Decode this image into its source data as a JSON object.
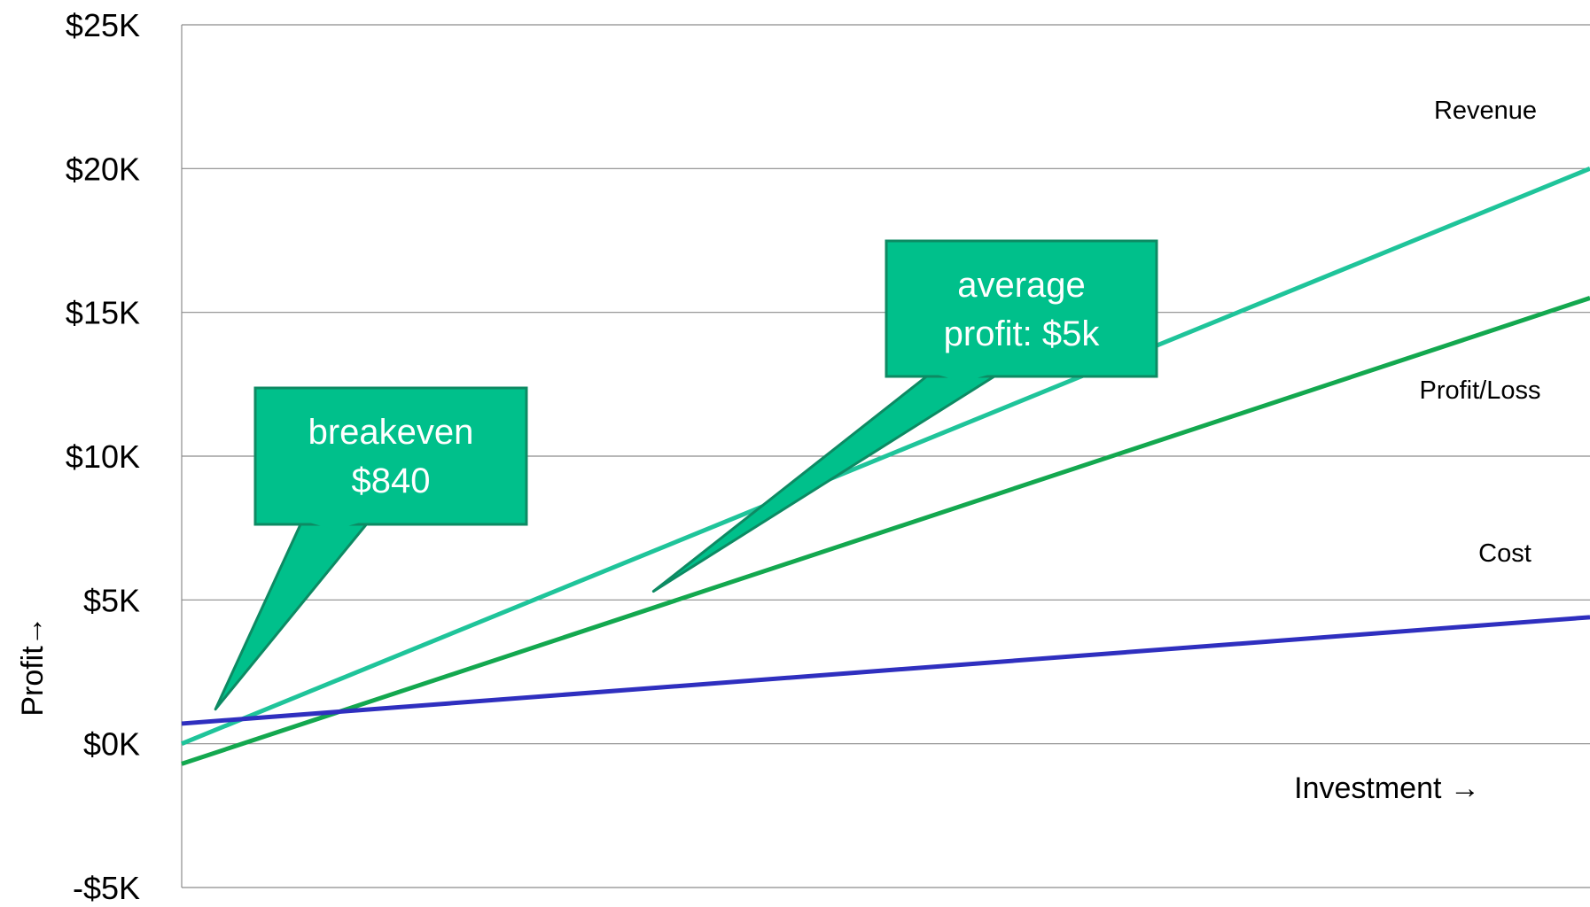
{
  "chart_data": {
    "type": "line",
    "title": "",
    "xlabel": "Investment →",
    "ylabel": "Profit→",
    "ylim": [
      -5000,
      25000
    ],
    "xlim": [
      0,
      1
    ],
    "yticks": [
      {
        "value": 25000,
        "label": "$25K",
        "color": "#000000"
      },
      {
        "value": 20000,
        "label": "$20K",
        "color": "#000000"
      },
      {
        "value": 15000,
        "label": "$15K",
        "color": "#000000"
      },
      {
        "value": 10000,
        "label": "$10K",
        "color": "#000000"
      },
      {
        "value": 5000,
        "label": "$5K",
        "color": "#000000"
      },
      {
        "value": 0,
        "label": "$0K",
        "color": "#000000"
      },
      {
        "value": -5000,
        "label": "-$5K",
        "color": "#ff0000"
      }
    ],
    "grid": true,
    "series": [
      {
        "name": "Revenue",
        "color": "#1fc49a",
        "x": [
          0,
          1
        ],
        "y": [
          0,
          20000
        ]
      },
      {
        "name": "Profit/Loss",
        "color": "#13a84f",
        "x": [
          0,
          1
        ],
        "y": [
          -700,
          15500
        ]
      },
      {
        "name": "Cost",
        "color": "#2f2fbf",
        "x": [
          0,
          1
        ],
        "y": [
          700,
          4400
        ]
      }
    ],
    "annotations": [
      {
        "line1": "breakeven",
        "line2": "$840",
        "point_x": 0.024,
        "point_y": 1200
      },
      {
        "line1": "average",
        "line2": "profit:  $5k",
        "point_x": 0.335,
        "point_y": 5300
      }
    ]
  },
  "colors": {
    "grid": "#8c8c8c",
    "callout_fill": "#00c08b",
    "callout_border": "#0d8a63"
  }
}
